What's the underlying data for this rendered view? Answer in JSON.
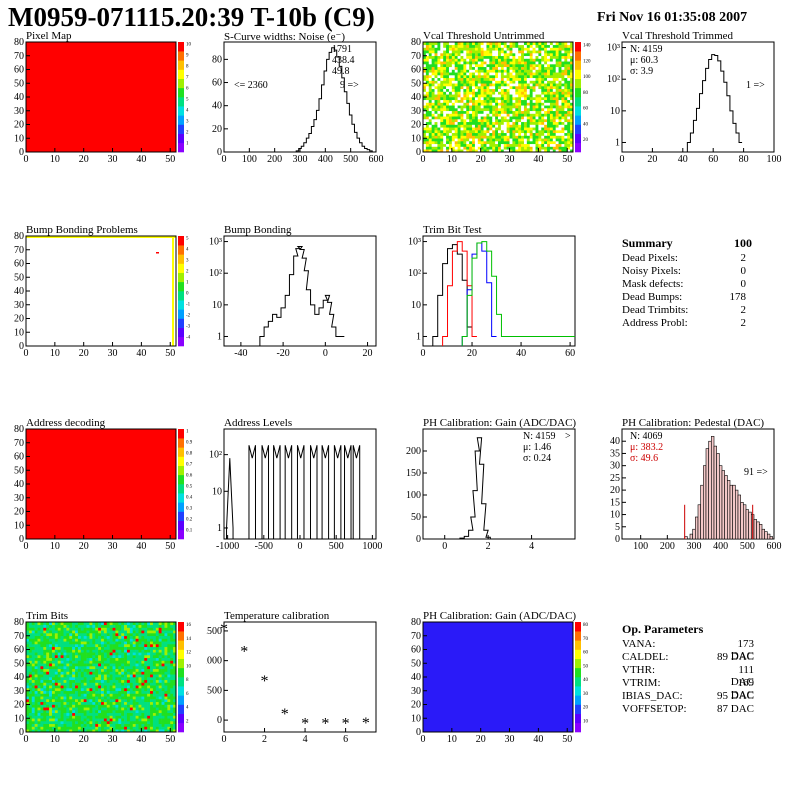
{
  "header": {
    "title": "M0959-071115.20:39 T-10b (C9)",
    "date": "Fri Nov 16 01:35:08 2007"
  },
  "colors": {
    "red": "#ff0000",
    "blue_fill": "#2a1af8",
    "palette": [
      "#8a00ff",
      "#5a00ff",
      "#2040ff",
      "#00a0ff",
      "#00e0e0",
      "#00e080",
      "#20e020",
      "#a0f000",
      "#ffff00",
      "#ffc000",
      "#ff7000",
      "#ff0000"
    ]
  },
  "panels": [
    {
      "key": "pixel_map",
      "title": "Pixel Map"
    },
    {
      "key": "noise",
      "title": "S-Curve widths: Noise (e⁻)"
    },
    {
      "key": "vcal_untrim",
      "title": "Vcal Threshold Untrimmed"
    },
    {
      "key": "vcal_trim",
      "title": "Vcal Threshold Trimmed"
    },
    {
      "key": "bump_problems",
      "title": "Bump Bonding Problems"
    },
    {
      "key": "bump",
      "title": "Bump Bonding"
    },
    {
      "key": "trimbit",
      "title": "Trim Bit Test"
    },
    {
      "key": "addr_dec",
      "title": "Address decoding"
    },
    {
      "key": "addr_lev",
      "title": "Address Levels"
    },
    {
      "key": "ph_gain",
      "title": "PH Calibration: Gain (ADC/DAC)"
    },
    {
      "key": "ph_ped",
      "title": "PH Calibration: Pedestal (DAC)"
    },
    {
      "key": "trim_bits",
      "title": "Trim Bits"
    },
    {
      "key": "temp",
      "title": "Temperature calibration"
    },
    {
      "key": "ph_gain_map",
      "title": "PH Calibration: Gain (ADC/DAC)"
    }
  ],
  "stats": {
    "noise": {
      "n": "1791",
      "mu": "438.4",
      "sigma": "49.8",
      "under": "<= 2360",
      "over": "9 =>"
    },
    "vcal_trim": {
      "n": "N: 4159",
      "mu": "μ: 60.3",
      "sigma": "σ:  3.9",
      "over": "1 =>"
    },
    "ph_gain": {
      "n": "N: 4159",
      "over": ">",
      "mu": "μ: 1.46",
      "sigma": "σ: 0.24"
    },
    "ph_ped": {
      "n": "N: 4069",
      "mu": "μ: 383.2",
      "sigma": "σ: 49.6",
      "over": "91 =>"
    }
  },
  "summary": {
    "title": "Summary",
    "title_value": "100",
    "rows": [
      {
        "label": "Dead Pixels:",
        "value": "2"
      },
      {
        "label": "Noisy Pixels:",
        "value": "0"
      },
      {
        "label": "Mask defects:",
        "value": "0"
      },
      {
        "label": "Dead Bumps:",
        "value": "178"
      },
      {
        "label": "Dead Trimbits:",
        "value": "2"
      },
      {
        "label": "Address Probl:",
        "value": "2"
      }
    ]
  },
  "op_params": {
    "title": "Op. Parameters",
    "rows": [
      {
        "label": "VANA:",
        "value": "173 DAC"
      },
      {
        "label": "CALDEL:",
        "value": "89 DAC"
      },
      {
        "label": "VTHR:",
        "value": "111 DAC"
      },
      {
        "label": "VTRIM:",
        "value": "169 DAC"
      },
      {
        "label": "IBIAS_DAC:",
        "value": "95 DAC"
      },
      {
        "label": "VOFFSETOP:",
        "value": "87 DAC"
      }
    ]
  },
  "chart_data": [
    {
      "id": "pixel_map",
      "type": "heatmap",
      "title": "Pixel Map",
      "x_ticks": [
        "0",
        "10",
        "20",
        "30",
        "40",
        "50"
      ],
      "y_ticks": [
        "0",
        "10",
        "20",
        "30",
        "40",
        "50",
        "60",
        "70",
        "80"
      ],
      "xlim": [
        0,
        52
      ],
      "ylim": [
        0,
        80
      ],
      "fill": "uniform-max",
      "z_ticks": [
        "1",
        "2",
        "3",
        "4",
        "5",
        "6",
        "7",
        "8",
        "9",
        "10"
      ]
    },
    {
      "id": "noise",
      "type": "line",
      "title": "S-Curve widths: Noise (e⁻)",
      "x_ticks": [
        "0",
        "100",
        "200",
        "300",
        "400",
        "500",
        "600"
      ],
      "y_ticks": [
        "0",
        "20",
        "40",
        "60",
        "80"
      ],
      "xlim": [
        0,
        600
      ],
      "ylim": [
        0,
        95
      ],
      "x": [
        290,
        300,
        310,
        320,
        330,
        340,
        350,
        360,
        370,
        380,
        390,
        400,
        410,
        420,
        430,
        440,
        450,
        460,
        470,
        480,
        490,
        500,
        510,
        520,
        530,
        540,
        550,
        560,
        570,
        580,
        590
      ],
      "y": [
        1,
        3,
        5,
        8,
        12,
        16,
        22,
        28,
        36,
        46,
        58,
        70,
        80,
        86,
        90,
        88,
        82,
        74,
        64,
        52,
        42,
        32,
        24,
        17,
        12,
        8,
        5,
        3,
        2,
        1,
        0
      ]
    },
    {
      "id": "vcal_untrim",
      "type": "heatmap",
      "title": "Vcal Threshold Untrimmed",
      "x_ticks": [
        "0",
        "10",
        "20",
        "30",
        "40",
        "50"
      ],
      "y_ticks": [
        "0",
        "10",
        "20",
        "30",
        "40",
        "50",
        "60",
        "70",
        "80"
      ],
      "xlim": [
        0,
        52
      ],
      "ylim": [
        0,
        80
      ],
      "z_ticks": [
        "20",
        "40",
        "60",
        "80",
        "100",
        "120",
        "140"
      ],
      "fill": "random-green-yellow"
    },
    {
      "id": "vcal_trim",
      "type": "line",
      "title": "Vcal Threshold Trimmed",
      "log_y": true,
      "x_ticks": [
        "0",
        "20",
        "40",
        "60",
        "80",
        "100"
      ],
      "y_ticks": [
        "1",
        "10",
        "10²",
        "10³"
      ],
      "xlim": [
        0,
        100
      ],
      "ylim": [
        1,
        1000
      ],
      "x": [
        44,
        46,
        48,
        50,
        52,
        54,
        56,
        58,
        60,
        62,
        64,
        66,
        68,
        70,
        72,
        74,
        76,
        78
      ],
      "y": [
        1,
        2,
        5,
        12,
        35,
        90,
        220,
        420,
        600,
        560,
        380,
        180,
        80,
        30,
        10,
        4,
        2,
        1
      ]
    },
    {
      "id": "bump_problems",
      "type": "heatmap",
      "title": "Bump Bonding Problems",
      "x_ticks": [
        "0",
        "10",
        "20",
        "30",
        "40",
        "50"
      ],
      "y_ticks": [
        "0",
        "10",
        "20",
        "30",
        "40",
        "50",
        "60",
        "70",
        "80"
      ],
      "xlim": [
        0,
        52
      ],
      "ylim": [
        0,
        80
      ],
      "z_ticks": [
        "-4",
        "-3",
        "-2",
        "-1",
        "0",
        "1",
        "2",
        "3",
        "4",
        "5"
      ],
      "fill": "empty-with-edges"
    },
    {
      "id": "bump",
      "type": "line",
      "title": "Bump Bonding",
      "log_y": true,
      "x_ticks": [
        "-40",
        "-20",
        "0",
        "20"
      ],
      "y_ticks": [
        "1",
        "10",
        "10²",
        "10³"
      ],
      "xlim": [
        -48,
        24
      ],
      "ylim": [
        0.5,
        1500
      ],
      "x": [
        -30,
        -28,
        -26,
        -24,
        -22,
        -20,
        -18,
        -16,
        -14,
        -13,
        -12,
        -11,
        -10,
        -9,
        -8,
        -6,
        -4,
        -2,
        0,
        1,
        2,
        3,
        4,
        6,
        8
      ],
      "y": [
        1,
        2,
        3,
        5,
        4,
        8,
        20,
        90,
        350,
        600,
        700,
        560,
        300,
        120,
        30,
        10,
        5,
        8,
        14,
        20,
        12,
        5,
        2,
        1,
        1
      ]
    },
    {
      "id": "trimbit",
      "type": "line",
      "title": "Trim Bit Test",
      "log_y": true,
      "x_ticks": [
        "0",
        "20",
        "40",
        "60"
      ],
      "y_ticks": [
        "1",
        "10",
        "10²",
        "10³"
      ],
      "xlim": [
        0,
        62
      ],
      "ylim": [
        0.5,
        1500
      ],
      "series": [
        {
          "color": "#000000",
          "x": [
            5,
            7,
            9,
            11,
            13,
            15,
            17,
            19
          ],
          "y": [
            1,
            20,
            200,
            600,
            800,
            400,
            60,
            2
          ]
        },
        {
          "color": "#ff0000",
          "x": [
            9,
            11,
            13,
            15,
            17,
            19,
            21
          ],
          "y": [
            1,
            40,
            500,
            1000,
            500,
            40,
            1
          ]
        },
        {
          "color": "#0000ff",
          "x": [
            17,
            19,
            21,
            23,
            25,
            27,
            29
          ],
          "y": [
            1,
            30,
            400,
            900,
            500,
            50,
            1
          ]
        },
        {
          "color": "#00c000",
          "x": [
            17,
            19,
            21,
            23,
            25,
            27,
            29,
            31,
            33
          ],
          "y": [
            1,
            20,
            300,
            900,
            1000,
            500,
            80,
            5,
            1
          ]
        }
      ]
    },
    {
      "id": "addr_dec",
      "type": "heatmap",
      "title": "Address decoding",
      "x_ticks": [
        "0",
        "10",
        "20",
        "30",
        "40",
        "50"
      ],
      "y_ticks": [
        "0",
        "10",
        "20",
        "30",
        "40",
        "50",
        "60",
        "70",
        "80"
      ],
      "xlim": [
        0,
        52
      ],
      "ylim": [
        0,
        80
      ],
      "z_ticks": [
        "0.1",
        "0.2",
        "0.3",
        "0.4",
        "0.5",
        "0.6",
        "0.7",
        "0.8",
        "0.9",
        "1"
      ],
      "fill": "uniform-max"
    },
    {
      "id": "addr_lev",
      "type": "line",
      "title": "Address Levels",
      "log_y": true,
      "x_ticks": [
        "-1000",
        "-500",
        "0",
        "500",
        "1000"
      ],
      "y_ticks": [
        "1",
        "10",
        "10²"
      ],
      "xlim": [
        -1050,
        1050
      ],
      "ylim": [
        0.5,
        500
      ],
      "peaks": [
        -970,
        -660,
        -480,
        -320,
        -160,
        10,
        190,
        350,
        520,
        660,
        780
      ]
    },
    {
      "id": "ph_gain",
      "type": "line",
      "title": "PH Calibration: Gain (ADC/DAC)",
      "x_ticks": [
        "0",
        "2",
        "4"
      ],
      "y_ticks": [
        "0",
        "50",
        "100",
        "150",
        "200"
      ],
      "xlim": [
        -1,
        6
      ],
      "ylim": [
        0,
        250
      ],
      "x": [
        0.6,
        0.8,
        1.0,
        1.2,
        1.3,
        1.4,
        1.5,
        1.6,
        1.7,
        1.8,
        1.9,
        2.0,
        2.2
      ],
      "y": [
        0,
        2,
        6,
        20,
        50,
        110,
        200,
        230,
        170,
        80,
        20,
        4,
        0
      ]
    },
    {
      "id": "ph_ped",
      "type": "bar",
      "title": "PH Calibration: Pedestal (DAC)",
      "x_ticks": [
        "100",
        "200",
        "300",
        "400",
        "500",
        "600"
      ],
      "y_ticks": [
        "0",
        "5",
        "10",
        "15",
        "20",
        "25",
        "30",
        "35",
        "40"
      ],
      "xlim": [
        30,
        600
      ],
      "ylim": [
        0,
        45
      ],
      "x": [
        270,
        290,
        300,
        310,
        320,
        330,
        340,
        350,
        360,
        370,
        380,
        390,
        400,
        410,
        420,
        430,
        440,
        450,
        460,
        470,
        480,
        490,
        500,
        510,
        520,
        530,
        540,
        550,
        560,
        570,
        580,
        590
      ],
      "y": [
        1,
        2,
        4,
        9,
        14,
        22,
        30,
        37,
        40,
        42,
        38,
        35,
        30,
        28,
        26,
        24,
        22,
        22,
        20,
        18,
        15,
        14,
        12,
        11,
        10,
        8,
        7,
        6,
        4,
        3,
        2,
        1
      ]
    },
    {
      "id": "trim_bits",
      "type": "heatmap",
      "title": "Trim Bits",
      "x_ticks": [
        "0",
        "10",
        "20",
        "30",
        "40",
        "50"
      ],
      "y_ticks": [
        "0",
        "10",
        "20",
        "30",
        "40",
        "50",
        "60",
        "70",
        "80"
      ],
      "xlim": [
        0,
        52
      ],
      "ylim": [
        0,
        80
      ],
      "z_ticks": [
        "2",
        "4",
        "6",
        "8",
        "10",
        "12",
        "14",
        "16"
      ],
      "fill": "random-green"
    },
    {
      "id": "temp",
      "type": "scatter",
      "title": "Temperature calibration",
      "x_ticks": [
        "0",
        "2",
        "4",
        "6"
      ],
      "y_ticks": [
        "0",
        "500",
        "1000",
        "1500"
      ],
      "xlim": [
        0,
        7.5
      ],
      "ylim": [
        -200,
        1650
      ],
      "x": [
        0,
        1,
        2,
        3,
        4,
        5,
        6,
        7
      ],
      "y": [
        1530,
        1150,
        660,
        100,
        -60,
        -60,
        -60,
        -50
      ]
    },
    {
      "id": "ph_gain_map",
      "type": "heatmap",
      "title": "PH Calibration: Gain (ADC/DAC)",
      "x_ticks": [
        "0",
        "10",
        "20",
        "30",
        "40",
        "50"
      ],
      "y_ticks": [
        "0",
        "10",
        "20",
        "30",
        "40",
        "50",
        "60",
        "70",
        "80"
      ],
      "xlim": [
        0,
        52
      ],
      "ylim": [
        0,
        80
      ],
      "z_ticks": [
        "10",
        "20",
        "30",
        "40",
        "50",
        "60",
        "70",
        "80"
      ],
      "fill": "uniform-min"
    }
  ]
}
